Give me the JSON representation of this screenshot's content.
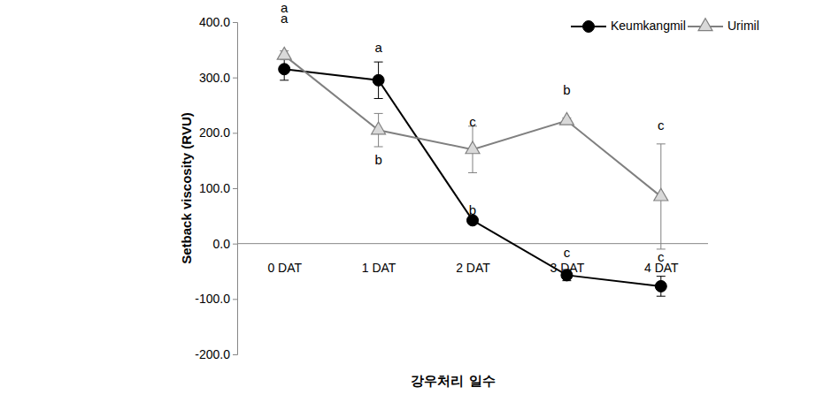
{
  "chart_data": {
    "type": "line",
    "categories": [
      "0 DAT",
      "1 DAT",
      "2 DAT",
      "3 DAT",
      "4 DAT"
    ],
    "x_label": "강우처리 일수",
    "y_label": "Setback viscosity (RVU)",
    "ylim": [
      -200,
      400
    ],
    "yticks": [
      {
        "value": -200,
        "label": "-200.0"
      },
      {
        "value": -100,
        "label": "-100.0"
      },
      {
        "value": 0,
        "label": "0.0"
      },
      {
        "value": 100,
        "label": "100.0"
      },
      {
        "value": 200,
        "label": "200.0"
      },
      {
        "value": 300,
        "label": "300.0"
      },
      {
        "value": 400,
        "label": "400.0"
      }
    ],
    "grid": false,
    "legend": "top-right",
    "series": [
      {
        "name": "Keumkangmil",
        "color": "#000000",
        "marker": "circle",
        "values": [
          315,
          295,
          42,
          -57,
          -77
        ],
        "errors": [
          20,
          33,
          6,
          10,
          18
        ]
      },
      {
        "name": "Urimil",
        "color": "#808080",
        "marker": "triangle",
        "values": [
          340,
          205,
          170,
          222,
          85
        ],
        "errors": [
          8,
          30,
          42,
          5,
          95
        ]
      }
    ],
    "annotations": [
      {
        "text": "a",
        "x": 0,
        "y": 424
      },
      {
        "text": "a",
        "x": 0,
        "y": 405
      },
      {
        "text": "a",
        "x": 1,
        "y": 352
      },
      {
        "text": "b",
        "x": 1,
        "y": 150
      },
      {
        "text": "c",
        "x": 2,
        "y": 218
      },
      {
        "text": "b",
        "x": 2,
        "y": 58
      },
      {
        "text": "b",
        "x": 3,
        "y": 275
      },
      {
        "text": "c",
        "x": 3,
        "y": -18
      },
      {
        "text": "c",
        "x": 4,
        "y": 212
      },
      {
        "text": "c",
        "x": 4,
        "y": -26
      }
    ]
  }
}
